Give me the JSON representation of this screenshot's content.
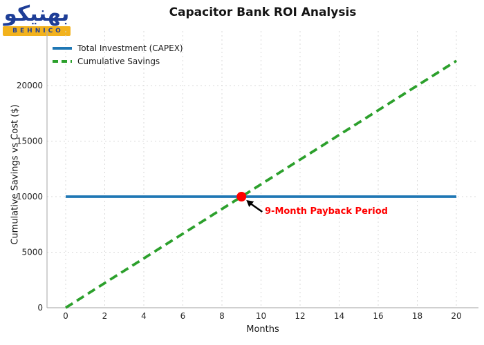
{
  "logo": {
    "brand_fa": "بهنیکو",
    "brand_en": "BEHNICO"
  },
  "chart": {
    "legend": [
      {
        "label": "Total Investment (CAPEX)",
        "color": "#1f77b4",
        "style": "solid"
      },
      {
        "label": "Cumulative Savings",
        "color": "#2ca02c",
        "style": "dashed"
      }
    ]
  },
  "chart_data": {
    "type": "line",
    "title": "Capacitor Bank ROI Analysis",
    "xlabel": "Months",
    "ylabel": "Cumulative Savings vs Cost ($)",
    "x": [
      0,
      1,
      2,
      3,
      4,
      5,
      6,
      7,
      8,
      9,
      10,
      11,
      12,
      13,
      14,
      15,
      16,
      17,
      18,
      19,
      20
    ],
    "series": [
      {
        "name": "Total Investment (CAPEX)",
        "color": "#1f77b4",
        "style": "solid",
        "values": [
          10000,
          10000,
          10000,
          10000,
          10000,
          10000,
          10000,
          10000,
          10000,
          10000,
          10000,
          10000,
          10000,
          10000,
          10000,
          10000,
          10000,
          10000,
          10000,
          10000,
          10000
        ]
      },
      {
        "name": "Cumulative Savings",
        "color": "#2ca02c",
        "style": "dashed",
        "values": [
          0,
          1111,
          2222,
          3333,
          4444,
          5556,
          6667,
          7778,
          8889,
          10000,
          11111,
          12222,
          13333,
          14444,
          15556,
          16667,
          17778,
          18889,
          20000,
          21111,
          22222
        ]
      }
    ],
    "xticks": [
      0,
      2,
      4,
      6,
      8,
      10,
      12,
      14,
      16,
      18,
      20
    ],
    "yticks": [
      0,
      5000,
      10000,
      15000,
      20000
    ],
    "xlim": [
      -1,
      21.1
    ],
    "ylim": [
      0,
      24900
    ],
    "grid": true,
    "legend_position": "upper left",
    "annotations": [
      {
        "text": "9-Month Payback Period",
        "xy": [
          9,
          10000
        ],
        "color": "#ff0000",
        "marker": "point"
      }
    ],
    "grid_color": "#d8d8d8",
    "spine_color": "#b3b3b3",
    "tick_color": "#262626"
  }
}
